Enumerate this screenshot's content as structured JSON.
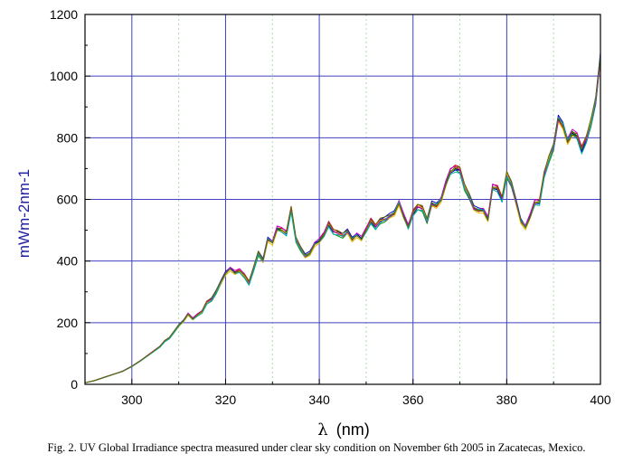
{
  "caption": "Fig. 2. UV Global Irradiance spectra measured under clear sky condition on November 6th 2005 in Zacatecas, Mexico.",
  "chart_data": {
    "type": "line",
    "xlabel_symbol": "λ",
    "xlabel_unit": "(nm)",
    "ylabel": "mWm-2nm-1",
    "xlim": [
      290,
      400
    ],
    "ylim": [
      0,
      1200
    ],
    "x_ticks": [
      300,
      320,
      340,
      360,
      380,
      400
    ],
    "y_ticks": [
      0,
      200,
      400,
      600,
      800,
      1000,
      1200
    ],
    "grid": true,
    "major_grid_color": "#4040c0",
    "minor_grid_color": "#a8dca8",
    "series_colors": [
      "#000000",
      "#cc0000",
      "#009900",
      "#0000cc",
      "#e6b800",
      "#cc00cc",
      "#00aaaa",
      "#666600"
    ],
    "x": [
      290,
      292,
      294,
      296,
      298,
      300,
      302,
      304,
      306,
      307,
      308,
      309,
      310,
      311,
      312,
      313,
      314,
      315,
      316,
      317,
      318,
      319,
      320,
      321,
      322,
      323,
      324,
      325,
      326,
      327,
      328,
      329,
      330,
      331,
      332,
      333,
      334,
      335,
      336,
      337,
      338,
      339,
      340,
      341,
      342,
      343,
      344,
      345,
      346,
      347,
      348,
      349,
      350,
      351,
      352,
      353,
      354,
      355,
      356,
      357,
      358,
      359,
      360,
      361,
      362,
      363,
      364,
      365,
      366,
      367,
      368,
      369,
      370,
      371,
      372,
      373,
      374,
      375,
      376,
      377,
      378,
      379,
      380,
      381,
      382,
      383,
      384,
      385,
      386,
      387,
      388,
      389,
      390,
      391,
      392,
      393,
      394,
      395,
      396,
      397,
      398,
      399,
      400
    ],
    "series": [
      {
        "values": [
          5,
          12,
          22,
          32,
          42,
          58,
          78,
          100,
          122,
          140,
          150,
          170,
          190,
          205,
          228,
          212,
          225,
          235,
          265,
          275,
          300,
          330,
          360,
          375,
          362,
          368,
          352,
          328,
          375,
          425,
          400,
          470,
          460,
          505,
          500,
          490,
          568,
          470,
          440,
          415,
          425,
          455,
          465,
          485,
          520,
          495,
          490,
          482,
          495,
          470,
          485,
          472,
          500,
          530,
          510,
          530,
          535,
          545,
          555,
          590,
          545,
          510,
          555,
          575,
          570,
          530,
          585,
          580,
          600,
          650,
          690,
          700,
          695,
          640,
          610,
          570,
          565,
          565,
          535,
          640,
          635,
          600,
          680,
          650,
          590,
          530,
          510,
          545,
          590,
          590,
          680,
          730,
          770,
          860,
          840,
          790,
          815,
          805,
          760,
          795,
          850,
          920,
          1060
        ]
      }
    ]
  }
}
